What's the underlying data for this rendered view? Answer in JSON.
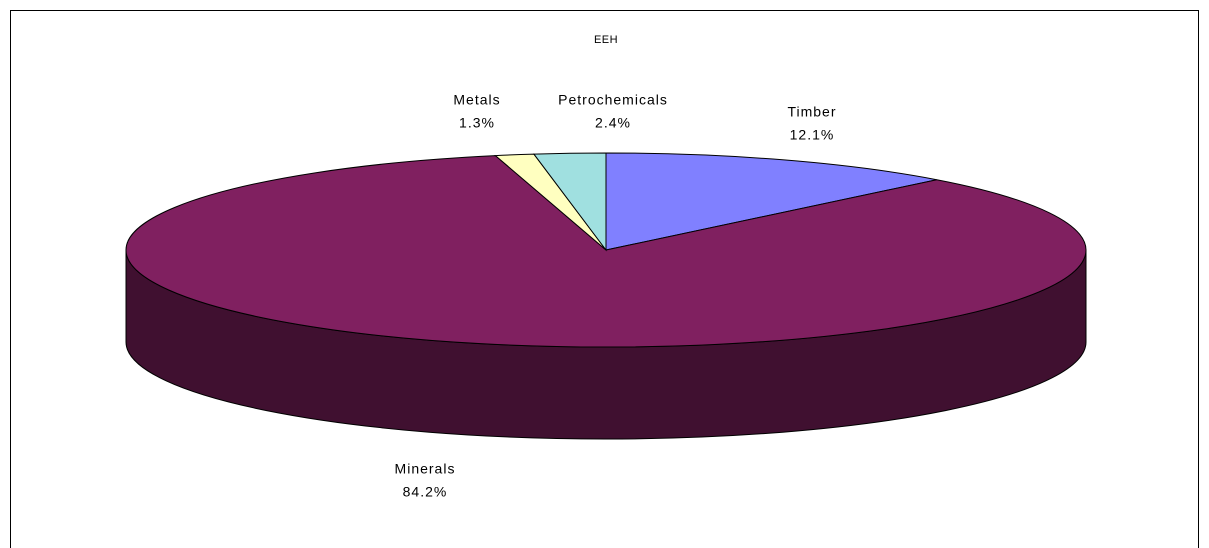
{
  "chart_data": {
    "type": "pie",
    "title": "EEH",
    "categories": [
      "Timber",
      "Minerals",
      "Metals",
      "Petrochemicals"
    ],
    "values": [
      12.1,
      84.2,
      1.3,
      2.4
    ],
    "value_labels": [
      "12.1%",
      "84.2%",
      "1.3%",
      "2.4%"
    ],
    "colors": [
      "#8080ff",
      "#802060",
      "#ffffc0",
      "#a0e0e0"
    ]
  }
}
